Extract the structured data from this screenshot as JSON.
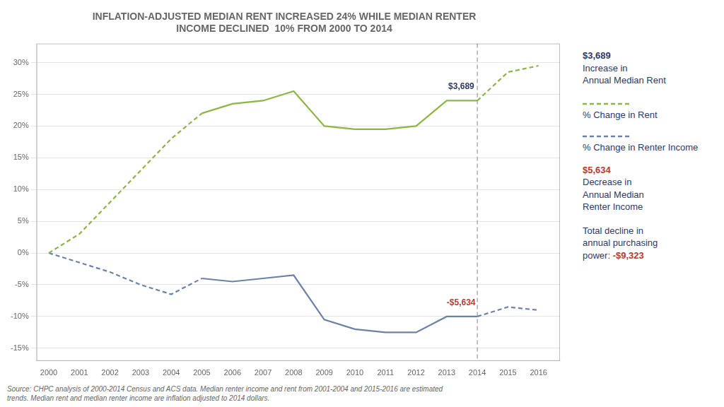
{
  "chart_data": {
    "type": "line",
    "title": [
      "INFLATION-ADJUSTED MEDIAN RENT INCREASED 24% WHILE MEDIAN RENTER",
      "INCOME DECLINED  10% FROM 2000 TO 2014"
    ],
    "x": [
      2000,
      2001,
      2002,
      2003,
      2004,
      2005,
      2006,
      2007,
      2008,
      2009,
      2010,
      2011,
      2012,
      2013,
      2014,
      2015,
      2016
    ],
    "series": [
      {
        "name": "% Change in Rent",
        "color": "#8ab840",
        "line_style": "dashed",
        "values": [
          0,
          3,
          8,
          13,
          18,
          22,
          null,
          null,
          null,
          null,
          null,
          null,
          null,
          null,
          null,
          null,
          null
        ]
      },
      {
        "name": "% Change in Rent",
        "color": "#8ab840",
        "line_style": "solid",
        "values": [
          null,
          null,
          null,
          null,
          null,
          22,
          23.5,
          24,
          25.5,
          20.0,
          19.5,
          19.5,
          20.0,
          24.0,
          24.0,
          null,
          null
        ]
      },
      {
        "name": "% Change in Rent",
        "color": "#8ab840",
        "line_style": "dashed",
        "values": [
          null,
          null,
          null,
          null,
          null,
          null,
          null,
          null,
          null,
          null,
          null,
          null,
          null,
          null,
          24.0,
          28.5,
          29.5
        ]
      },
      {
        "name": "% Change in Renter Income",
        "color": "#6b82aa",
        "line_style": "dashed",
        "values": [
          0,
          -1.5,
          -3.0,
          -5.0,
          -6.5,
          -4.0,
          null,
          null,
          null,
          null,
          null,
          null,
          null,
          null,
          null,
          null,
          null
        ]
      },
      {
        "name": "% Change in Renter Income",
        "color": "#6b82aa",
        "line_style": "solid",
        "values": [
          null,
          null,
          null,
          null,
          null,
          -4.0,
          -4.5,
          -4.0,
          -3.5,
          -10.5,
          -12.0,
          -12.5,
          -12.5,
          -10.0,
          -10.0,
          null,
          null
        ]
      },
      {
        "name": "% Change in Renter Income",
        "color": "#6b82aa",
        "line_style": "dashed",
        "values": [
          null,
          null,
          null,
          null,
          null,
          null,
          null,
          null,
          null,
          null,
          null,
          null,
          null,
          null,
          -10.0,
          -8.5,
          -9.0
        ]
      }
    ],
    "marker": "none",
    "xlim": [
      1999.6,
      2016.7
    ],
    "xticks": [
      2000,
      2001,
      2002,
      2003,
      2004,
      2005,
      2006,
      2007,
      2008,
      2009,
      2010,
      2011,
      2012,
      2013,
      2014,
      2015,
      2016
    ],
    "ylim": [
      -17,
      33
    ],
    "yticks": [
      {
        "value": -15,
        "label": "-15%"
      },
      {
        "value": -10,
        "label": "-10%"
      },
      {
        "value": -5,
        "label": "-5%"
      },
      {
        "value": 0,
        "label": "0%"
      },
      {
        "value": 5,
        "label": "5%"
      },
      {
        "value": 10,
        "label": "10%"
      },
      {
        "value": 15,
        "label": "15%"
      },
      {
        "value": 20,
        "label": "20%"
      },
      {
        "value": 25,
        "label": "25%"
      },
      {
        "value": 30,
        "label": "30%"
      }
    ],
    "grid": "y",
    "legend": "right",
    "annotations": [
      {
        "x": 2014,
        "line_style": "dashed",
        "color": "#999999"
      },
      {
        "text": "$3,689",
        "x": 2013.9,
        "y": 25.5,
        "color": "#2d3a6b"
      },
      {
        "text": "-$5,634",
        "x": 2013.0,
        "y": -8.5,
        "color": "#c0392b"
      },
      {
        "color": "#2d3a6b",
        "lines": [
          [
            {
              "text": "$3,689",
              "color": "#2d3a6b"
            }
          ],
          [
            {
              "text": "Increase in"
            }
          ],
          [
            {
              "text": "Annual Median Rent"
            }
          ]
        ]
      },
      {
        "color": "#2d3a6b",
        "lines": [
          [
            {
              "text": "$5,634",
              "color": "#c0392b"
            }
          ],
          [
            {
              "text": "Decrease in"
            }
          ],
          [
            {
              "text": "Annual Median"
            }
          ],
          [
            {
              "text": "Renter Income"
            }
          ]
        ]
      },
      {
        "color": "#2d3a6b",
        "lines": [
          [
            {
              "text": "Total decline in"
            }
          ],
          [
            {
              "text": "annual purchasing"
            }
          ],
          [
            {
              "text": "power: "
            },
            {
              "text": "-$9,323",
              "color": "#c0392b"
            }
          ]
        ]
      }
    ],
    "source": "Source: CHPC analysis of 2000-2014 Census and ACS data. Median renter income and rent from 2001-2004 and 2015-2016 are estimated\ntrends. Median rent and median renter income are inflation adjusted to 2014 dollars."
  }
}
